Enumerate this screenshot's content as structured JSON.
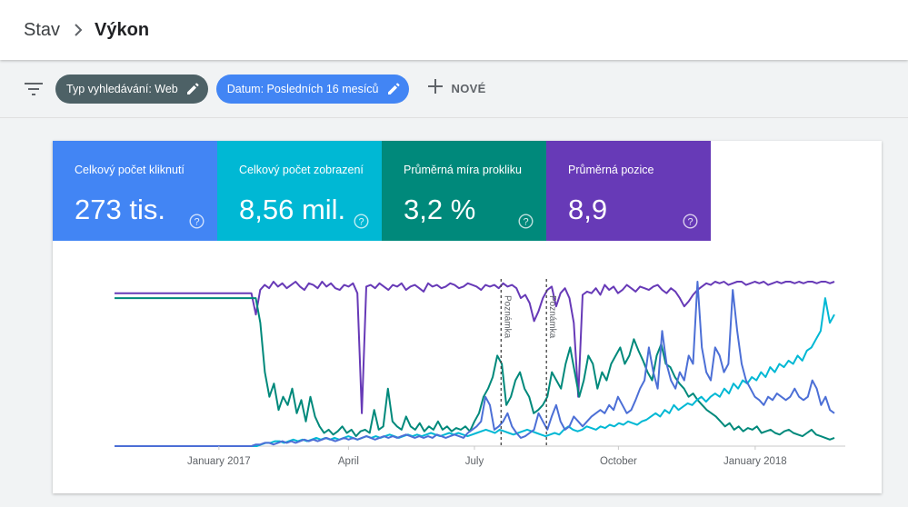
{
  "breadcrumb": {
    "parent": "Stav",
    "current": "Výkon"
  },
  "filters": {
    "type_chip": "Typ vyhledávání: Web",
    "date_chip": "Datum: Posledních 16 mesíců",
    "new_label": "NOVÉ"
  },
  "metrics": [
    {
      "label": "Celkový počet kliknutí",
      "value": "273 tis.",
      "color": "#4285f4"
    },
    {
      "label": "Celkový počet zobrazení",
      "value": "8,56 mil.",
      "color": "#00b8d4"
    },
    {
      "label": "Průměrná míra prokliku",
      "value": "3,2 %",
      "color": "#00897b"
    },
    {
      "label": "Průměrná pozice",
      "value": "8,9",
      "color": "#673ab7"
    }
  ],
  "chart_data": {
    "type": "line",
    "x_ticks": [
      "January 2017",
      "April",
      "July",
      "October",
      "January 2018"
    ],
    "x_tick_fracs": [
      0.145,
      0.325,
      0.5,
      0.7,
      0.89
    ],
    "annotations": [
      {
        "label": "Poznámka",
        "at": 0.537
      },
      {
        "label": "Poznámka",
        "at": 0.6
      }
    ],
    "series": [
      {
        "key": "position",
        "color": "#673ab7",
        "values": [
          0.93,
          0.93,
          0.93,
          0.93,
          0.93,
          0.93,
          0.93,
          0.93,
          0.93,
          0.93,
          0.93,
          0.93,
          0.93,
          0.93,
          0.93,
          0.93,
          0.93,
          0.93,
          0.93,
          0.93,
          0.93,
          0.93,
          0.93,
          0.93,
          0.93,
          0.93,
          0.93,
          0.93,
          0.93,
          0.93,
          0.93,
          0.93,
          0.8,
          0.95,
          0.98,
          0.96,
          1.0,
          0.97,
          0.99,
          0.96,
          0.98,
          1.0,
          0.97,
          0.95,
          0.99,
          0.98,
          0.96,
          1.0,
          0.97,
          0.99,
          0.96,
          0.95,
          0.98,
          0.97,
          0.99,
          0.93,
          0.2,
          0.97,
          0.98,
          0.96,
          0.99,
          0.97,
          0.95,
          0.98,
          0.97,
          0.99,
          0.95,
          0.97,
          0.98,
          0.96,
          0.94,
          0.99,
          0.97,
          0.98,
          0.96,
          0.97,
          0.99,
          0.98,
          0.96,
          0.97,
          0.99,
          0.98,
          0.97,
          0.95,
          0.98,
          0.97,
          0.98,
          0.96,
          0.99,
          0.97,
          0.98,
          0.96,
          0.9,
          0.92,
          0.87,
          0.76,
          0.82,
          0.9,
          0.95,
          0.97,
          0.85,
          0.93,
          0.96,
          0.9,
          0.75,
          0.3,
          0.92,
          0.94,
          0.93,
          0.96,
          0.92,
          0.98,
          0.95,
          0.97,
          0.93,
          0.95,
          0.98,
          0.96,
          0.94,
          0.97,
          0.96,
          0.95,
          0.97,
          0.98,
          0.95,
          0.93,
          0.96,
          0.94,
          0.9,
          0.85,
          0.88,
          0.92,
          0.95,
          0.97,
          0.99,
          0.98,
          1.0,
          0.99,
          1.0,
          0.98,
          0.99,
          1.0,
          1.0,
          0.98,
          0.99,
          1.0,
          0.99,
          1.0,
          0.98,
          0.99,
          1.0,
          0.99,
          1.0,
          1.0,
          0.99,
          1.0,
          0.99,
          1.0,
          1.0,
          0.99,
          1.0,
          1.0,
          0.99,
          1.0
        ]
      },
      {
        "key": "ctr",
        "color": "#00897b",
        "values": [
          0.9,
          0.9,
          0.9,
          0.9,
          0.9,
          0.9,
          0.9,
          0.9,
          0.9,
          0.9,
          0.9,
          0.9,
          0.9,
          0.9,
          0.9,
          0.9,
          0.9,
          0.9,
          0.9,
          0.9,
          0.9,
          0.9,
          0.9,
          0.9,
          0.9,
          0.9,
          0.9,
          0.9,
          0.9,
          0.9,
          0.9,
          0.9,
          0.75,
          0.45,
          0.3,
          0.38,
          0.22,
          0.3,
          0.25,
          0.35,
          0.2,
          0.28,
          0.15,
          0.3,
          0.18,
          0.12,
          0.08,
          0.1,
          0.07,
          0.09,
          0.12,
          0.08,
          0.1,
          0.06,
          0.09,
          0.1,
          0.08,
          0.22,
          0.1,
          0.12,
          0.35,
          0.15,
          0.12,
          0.1,
          0.18,
          0.12,
          0.1,
          0.14,
          0.09,
          0.12,
          0.1,
          0.15,
          0.1,
          0.12,
          0.09,
          0.11,
          0.1,
          0.12,
          0.09,
          0.15,
          0.2,
          0.3,
          0.35,
          0.42,
          0.55,
          0.5,
          0.25,
          0.3,
          0.4,
          0.45,
          0.35,
          0.3,
          0.2,
          0.22,
          0.25,
          0.3,
          0.45,
          0.4,
          0.35,
          0.5,
          0.6,
          0.45,
          0.3,
          0.4,
          0.55,
          0.5,
          0.35,
          0.45,
          0.4,
          0.5,
          0.55,
          0.6,
          0.5,
          0.55,
          0.65,
          0.58,
          0.52,
          0.45,
          0.4,
          0.55,
          0.62,
          0.5,
          0.48,
          0.42,
          0.38,
          0.35,
          0.3,
          0.32,
          0.28,
          0.25,
          0.22,
          0.2,
          0.18,
          0.15,
          0.12,
          0.14,
          0.1,
          0.12,
          0.09,
          0.11,
          0.1,
          0.12,
          0.08,
          0.09,
          0.1,
          0.08,
          0.07,
          0.09,
          0.1,
          0.08,
          0.07,
          0.06,
          0.08,
          0.1,
          0.07,
          0.06,
          0.05,
          0.04,
          0.05
        ]
      },
      {
        "key": "impressions",
        "color": "#00b8d4",
        "values": [
          0,
          0,
          0,
          0,
          0,
          0,
          0,
          0,
          0,
          0,
          0,
          0,
          0,
          0,
          0,
          0,
          0,
          0,
          0,
          0,
          0,
          0,
          0,
          0,
          0,
          0,
          0,
          0,
          0,
          0,
          0,
          0,
          0.01,
          0.02,
          0.02,
          0.03,
          0.03,
          0.02,
          0.03,
          0.04,
          0.03,
          0.04,
          0.03,
          0.04,
          0.05,
          0.04,
          0.05,
          0.04,
          0.05,
          0.04,
          0.05,
          0.06,
          0.05,
          0.04,
          0.05,
          0.06,
          0.05,
          0.06,
          0.05,
          0.06,
          0.07,
          0.06,
          0.05,
          0.06,
          0.07,
          0.06,
          0.07,
          0.06,
          0.07,
          0.08,
          0.07,
          0.06,
          0.07,
          0.08,
          0.07,
          0.08,
          0.07,
          0.06,
          0.07,
          0.08,
          0.09,
          0.1,
          0.09,
          0.08,
          0.1,
          0.09,
          0.08,
          0.07,
          0.08,
          0.09,
          0.1,
          0.09,
          0.08,
          0.07,
          0.06,
          0.07,
          0.08,
          0.07,
          0.1,
          0.12,
          0.1,
          0.09,
          0.1,
          0.12,
          0.11,
          0.1,
          0.12,
          0.11,
          0.13,
          0.12,
          0.14,
          0.13,
          0.15,
          0.14,
          0.13,
          0.15,
          0.16,
          0.18,
          0.2,
          0.18,
          0.22,
          0.2,
          0.25,
          0.22,
          0.24,
          0.26,
          0.25,
          0.28,
          0.3,
          0.27,
          0.3,
          0.32,
          0.3,
          0.35,
          0.32,
          0.38,
          0.35,
          0.4,
          0.38,
          0.42,
          0.4,
          0.45,
          0.42,
          0.48,
          0.45,
          0.5,
          0.48,
          0.52,
          0.5,
          0.55,
          0.52,
          0.58,
          0.6,
          0.65,
          0.7,
          0.9,
          0.75,
          0.8
        ]
      },
      {
        "key": "clicks",
        "color": "#4c6fd6",
        "values": [
          0,
          0,
          0,
          0,
          0,
          0,
          0,
          0,
          0,
          0,
          0,
          0,
          0,
          0,
          0,
          0,
          0,
          0,
          0,
          0,
          0,
          0,
          0,
          0,
          0,
          0,
          0,
          0,
          0,
          0,
          0,
          0,
          0.01,
          0.01,
          0.02,
          0.02,
          0.01,
          0.02,
          0.03,
          0.02,
          0.03,
          0.02,
          0.03,
          0.04,
          0.03,
          0.04,
          0.03,
          0.04,
          0.05,
          0.04,
          0.03,
          0.04,
          0.05,
          0.04,
          0.05,
          0.04,
          0.05,
          0.06,
          0.05,
          0.04,
          0.05,
          0.06,
          0.05,
          0.06,
          0.05,
          0.06,
          0.07,
          0.06,
          0.05,
          0.06,
          0.05,
          0.06,
          0.05,
          0.07,
          0.06,
          0.05,
          0.06,
          0.07,
          0.06,
          0.05,
          0.08,
          0.1,
          0.12,
          0.15,
          0.3,
          0.25,
          0.1,
          0.12,
          0.15,
          0.2,
          0.12,
          0.08,
          0.05,
          0.06,
          0.08,
          0.1,
          0.2,
          0.15,
          0.1,
          0.18,
          0.25,
          0.15,
          0.1,
          0.12,
          0.18,
          0.15,
          0.12,
          0.15,
          0.18,
          0.2,
          0.22,
          0.2,
          0.25,
          0.22,
          0.3,
          0.25,
          0.2,
          0.22,
          0.28,
          0.35,
          0.4,
          0.6,
          0.45,
          0.35,
          0.7,
          0.5,
          0.4,
          0.35,
          0.45,
          0.4,
          0.55,
          0.5,
          1.0,
          0.6,
          0.45,
          0.4,
          0.6,
          0.55,
          0.45,
          0.5,
          0.95,
          0.7,
          0.5,
          0.4,
          0.35,
          0.3,
          0.28,
          0.25,
          0.3,
          0.28,
          0.32,
          0.3,
          0.28,
          0.3,
          0.35,
          0.3,
          0.28,
          0.3,
          0.4,
          0.35,
          0.25,
          0.3,
          0.22,
          0.2
        ]
      }
    ]
  }
}
